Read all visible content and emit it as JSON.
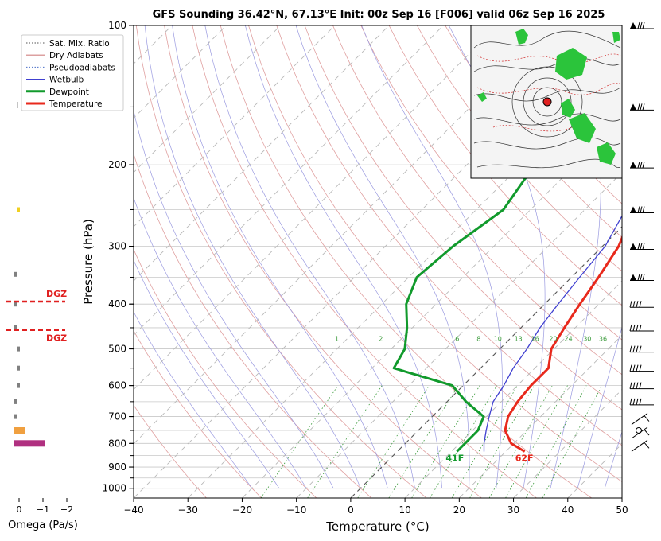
{
  "title": "GFS Sounding 36.42°N, 67.13°E Init: 00z Sep 16 [F006] valid 06z Sep 16 2025",
  "axes": {
    "xlabel": "Temperature (°C)",
    "ylabel": "Pressure (hPa)",
    "omega_label": "Omega (Pa/s)"
  },
  "legend": [
    {
      "label": "Sat. Mix. Ratio",
      "color": "#555555",
      "style": "dotted"
    },
    {
      "label": "Dry Adiabats",
      "color": "#d08080",
      "style": "solid"
    },
    {
      "label": "Pseudoadiabats",
      "color": "#4a6fc8",
      "style": "dotted"
    },
    {
      "label": "Wetbulb",
      "color": "#4040d0",
      "style": "solid"
    },
    {
      "label": "Dewpoint",
      "color": "#119a2c",
      "style": "thick"
    },
    {
      "label": "Temperature",
      "color": "#e8291c",
      "style": "thick"
    }
  ],
  "dgz_label": "DGZ",
  "surface_labels": {
    "dewpoint": "41F",
    "temperature": "62F"
  },
  "mixing_ratio_labels": [
    "1",
    "2",
    "6",
    "8",
    "10",
    "13",
    "16",
    "20",
    "24",
    "30",
    "36"
  ],
  "chart_data": {
    "type": "line",
    "title": "GFS Sounding 36.42°N, 67.13°E Init: 00z Sep 16 [F006] valid 06z Sep 16 2025",
    "xlabel": "Temperature (°C)",
    "ylabel": "Pressure (hPa)",
    "x_ticks": [
      -40,
      -30,
      -20,
      -10,
      0,
      10,
      20,
      30,
      40,
      50
    ],
    "y_ticks": [
      100,
      200,
      300,
      400,
      500,
      600,
      700,
      800,
      900,
      1000
    ],
    "xlim": [
      -40,
      50
    ],
    "ylim": [
      1050,
      100
    ],
    "y_scale": "log",
    "grid": true,
    "legend_position": "top-left",
    "series": [
      {
        "name": "Temperature",
        "color": "#e8291c",
        "points": [
          [
            100,
            -9.8
          ],
          [
            150,
            -9.8
          ],
          [
            200,
            -5
          ],
          [
            250,
            -1
          ],
          [
            300,
            3
          ],
          [
            350,
            5
          ],
          [
            400,
            6.5
          ],
          [
            450,
            8
          ],
          [
            500,
            9.5
          ],
          [
            550,
            12.5
          ],
          [
            600,
            12.5
          ],
          [
            650,
            13
          ],
          [
            700,
            14
          ],
          [
            750,
            16
          ],
          [
            800,
            19.5
          ],
          [
            833,
            23.5
          ]
        ]
      },
      {
        "name": "Dewpoint",
        "color": "#119a2c",
        "points": [
          [
            100,
            -19.5
          ],
          [
            150,
            -27.5
          ],
          [
            200,
            -27.5
          ],
          [
            250,
            -25
          ],
          [
            300,
            -27.5
          ],
          [
            350,
            -28.5
          ],
          [
            400,
            -25.5
          ],
          [
            450,
            -21
          ],
          [
            500,
            -17.5
          ],
          [
            550,
            -16
          ],
          [
            600,
            -2
          ],
          [
            650,
            3.5
          ],
          [
            700,
            9.5
          ],
          [
            750,
            11
          ],
          [
            800,
            11
          ],
          [
            833,
            11
          ]
        ]
      },
      {
        "name": "Wetbulb",
        "color": "#4040d0",
        "points": [
          [
            150,
            -9.8
          ],
          [
            200,
            -5.5
          ],
          [
            250,
            -2.5
          ],
          [
            300,
            0.5
          ],
          [
            350,
            1.5
          ],
          [
            400,
            2.5
          ],
          [
            450,
            3.5
          ],
          [
            500,
            5
          ],
          [
            550,
            6
          ],
          [
            600,
            7.5
          ],
          [
            650,
            8.5
          ],
          [
            700,
            10.5
          ],
          [
            750,
            12.5
          ],
          [
            800,
            14.5
          ],
          [
            833,
            16
          ]
        ]
      }
    ],
    "omega": {
      "xlabel": "Omega (Pa/s)",
      "x_ticks": [
        "0",
        "−1",
        "−2"
      ],
      "bars": [
        {
          "p": 250,
          "value": 0.0,
          "color": "#f0d020"
        },
        {
          "p": 345,
          "value": -0.05,
          "color": "#808080"
        },
        {
          "p": 400,
          "value": -0.05,
          "color": "#808080"
        },
        {
          "p": 450,
          "value": -0.05,
          "color": "#808080"
        },
        {
          "p": 500,
          "value": 0.0,
          "color": "#808080"
        },
        {
          "p": 550,
          "value": 0.0,
          "color": "#808080"
        },
        {
          "p": 600,
          "value": 0.0,
          "color": "#808080"
        },
        {
          "p": 650,
          "value": -0.05,
          "color": "#808080"
        },
        {
          "p": 700,
          "value": -0.1,
          "color": "#808080"
        },
        {
          "p": 750,
          "value": -0.45,
          "color": "#f0a040"
        },
        {
          "p": 800,
          "value": -1.3,
          "color": "#b03080"
        }
      ],
      "dgz_top_p": 395,
      "dgz_bottom_p": 455
    }
  }
}
